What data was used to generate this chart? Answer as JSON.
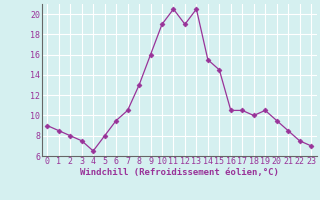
{
  "x": [
    0,
    1,
    2,
    3,
    4,
    5,
    6,
    7,
    8,
    9,
    10,
    11,
    12,
    13,
    14,
    15,
    16,
    17,
    18,
    19,
    20,
    21,
    22,
    23
  ],
  "y": [
    9,
    8.5,
    8,
    7.5,
    6.5,
    8,
    9.5,
    10.5,
    13,
    16,
    19,
    20.5,
    19,
    20.5,
    15.5,
    14.5,
    10.5,
    10.5,
    10,
    10.5,
    9.5,
    8.5,
    7.5,
    7
  ],
  "line_color": "#993399",
  "marker": "D",
  "markersize": 2.5,
  "linewidth": 0.9,
  "background_color": "#d5f0f0",
  "grid_color": "#ffffff",
  "xlabel": "Windchill (Refroidissement éolien,°C)",
  "xlabel_fontsize": 6.5,
  "tick_fontsize": 6,
  "ylim": [
    6,
    21
  ],
  "xlim": [
    -0.5,
    23.5
  ],
  "yticks": [
    6,
    8,
    10,
    12,
    14,
    16,
    18,
    20
  ],
  "xticks": [
    0,
    1,
    2,
    3,
    4,
    5,
    6,
    7,
    8,
    9,
    10,
    11,
    12,
    13,
    14,
    15,
    16,
    17,
    18,
    19,
    20,
    21,
    22,
    23
  ]
}
